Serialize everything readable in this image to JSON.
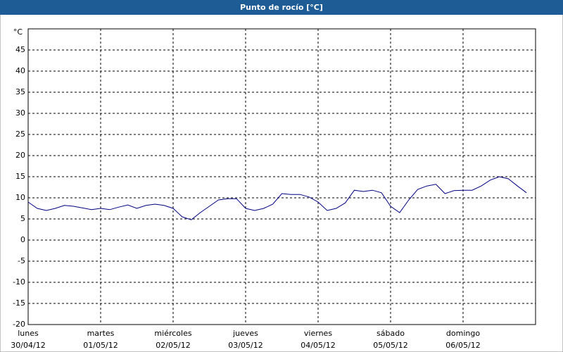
{
  "chart_data": {
    "type": "line",
    "title": "Punto de rocío [°C]",
    "y_unit": "°C",
    "x": [
      0,
      0.125,
      0.25,
      0.375,
      0.5,
      0.625,
      0.75,
      0.875,
      1,
      1.125,
      1.25,
      1.375,
      1.5,
      1.625,
      1.75,
      1.875,
      2,
      2.125,
      2.25,
      2.375,
      2.5,
      2.625,
      2.75,
      2.875,
      3,
      3.125,
      3.25,
      3.375,
      3.5,
      3.625,
      3.75,
      3.875,
      4,
      4.125,
      4.25,
      4.375,
      4.5,
      4.625,
      4.75,
      4.875,
      5,
      5.125,
      5.25,
      5.375,
      5.5,
      5.625,
      5.75,
      5.875,
      6,
      6.125,
      6.25,
      6.375,
      6.5,
      6.625,
      6.75,
      6.875
    ],
    "series": [
      {
        "color": "#000080",
        "values": [
          9,
          7.5,
          7,
          7.5,
          8.2,
          8,
          7.6,
          7.2,
          7.5,
          7.2,
          7.8,
          8.3,
          7.5,
          8.2,
          8.5,
          8.2,
          7.5,
          5.5,
          4.8,
          6.5,
          8,
          9.5,
          9.8,
          9.8,
          7.5,
          7,
          7.5,
          8.5,
          11,
          10.8,
          10.8,
          10.2,
          9,
          7,
          7.5,
          8.8,
          11.8,
          11.5,
          11.8,
          11.2,
          8,
          6.5,
          9.5,
          12,
          12.8,
          13.2,
          11,
          11.7,
          11.8,
          11.8,
          12.8,
          14.2,
          15,
          14.5,
          12.8,
          11.2
        ]
      }
    ],
    "xlim": [
      0,
      7
    ],
    "xticks": [
      {
        "value": 0,
        "label": "lunes"
      },
      {
        "value": 1,
        "label": "martes"
      },
      {
        "value": 2,
        "label": "miércoles"
      },
      {
        "value": 3,
        "label": "jueves"
      },
      {
        "value": 4,
        "label": "viernes"
      },
      {
        "value": 5,
        "label": "sábado"
      },
      {
        "value": 6,
        "label": "domingo"
      }
    ],
    "xtick_dates": [
      "30/04/12",
      "01/05/12",
      "02/05/12",
      "03/05/12",
      "04/05/12",
      "05/05/12",
      "06/05/12"
    ],
    "ylim": [
      -20,
      50
    ],
    "yticks": [
      -20,
      -15,
      -10,
      -5,
      0,
      5,
      10,
      15,
      20,
      25,
      30,
      35,
      40,
      45
    ],
    "grid": true
  }
}
